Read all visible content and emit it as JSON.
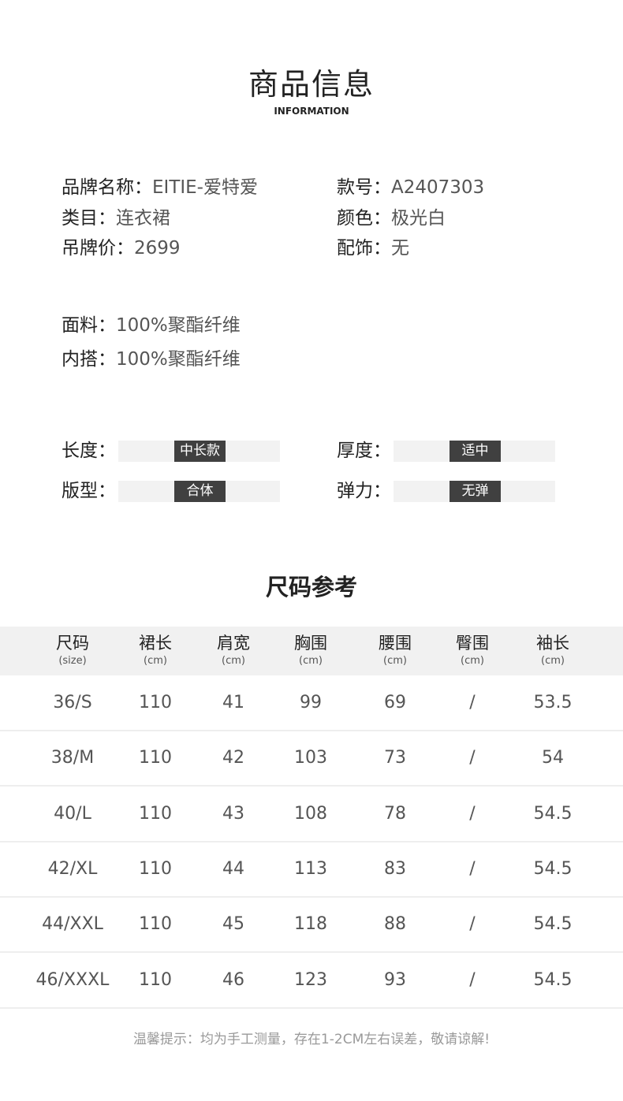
{
  "header": {
    "title": "商品信息",
    "subtitle": "INFORMATION"
  },
  "info": [
    {
      "key": "品牌名称：",
      "value": "EITIE-爱特爱"
    },
    {
      "key": "款号：",
      "value": "A2407303"
    },
    {
      "key": "类目：",
      "value": "连衣裙"
    },
    {
      "key": "颜色：",
      "value": "极光白"
    },
    {
      "key": "吊牌价：",
      "value": "2699"
    },
    {
      "key": "配饰：",
      "value": "无"
    }
  ],
  "fabric": [
    {
      "key": "面料：",
      "value": "100%聚酯纤维"
    },
    {
      "key": "内搭：",
      "value": "100%聚酯纤维"
    }
  ],
  "attributes": [
    {
      "label": "长度：",
      "value": "中长款"
    },
    {
      "label": "厚度：",
      "value": "适中"
    },
    {
      "label": "版型：",
      "value": "合体"
    },
    {
      "label": "弹力：",
      "value": "无弹"
    }
  ],
  "size_title": "尺码参考",
  "size_table": {
    "headers": [
      [
        "尺码",
        "(size)"
      ],
      [
        "裙长",
        "(cm)"
      ],
      [
        "肩宽",
        "(cm)"
      ],
      [
        "胸围",
        "(cm)"
      ],
      [
        "腰围",
        "(cm)"
      ],
      [
        "臀围",
        "(cm)"
      ],
      [
        "袖长",
        "(cm)"
      ]
    ],
    "rows": [
      [
        "36/S",
        "110",
        "41",
        "99",
        "69",
        "/",
        "53.5"
      ],
      [
        "38/M",
        "110",
        "42",
        "103",
        "73",
        "/",
        "54"
      ],
      [
        "40/L",
        "110",
        "43",
        "108",
        "78",
        "/",
        "54.5"
      ],
      [
        "42/XL",
        "110",
        "44",
        "113",
        "83",
        "/",
        "54.5"
      ],
      [
        "44/XXL",
        "110",
        "45",
        "118",
        "88",
        "/",
        "54.5"
      ],
      [
        "46/XXXL",
        "110",
        "46",
        "123",
        "93",
        "/",
        "54.5"
      ]
    ]
  },
  "footer": "温馨提示：均为手工测量，存在1-2CM左右误差，敬请谅解!"
}
